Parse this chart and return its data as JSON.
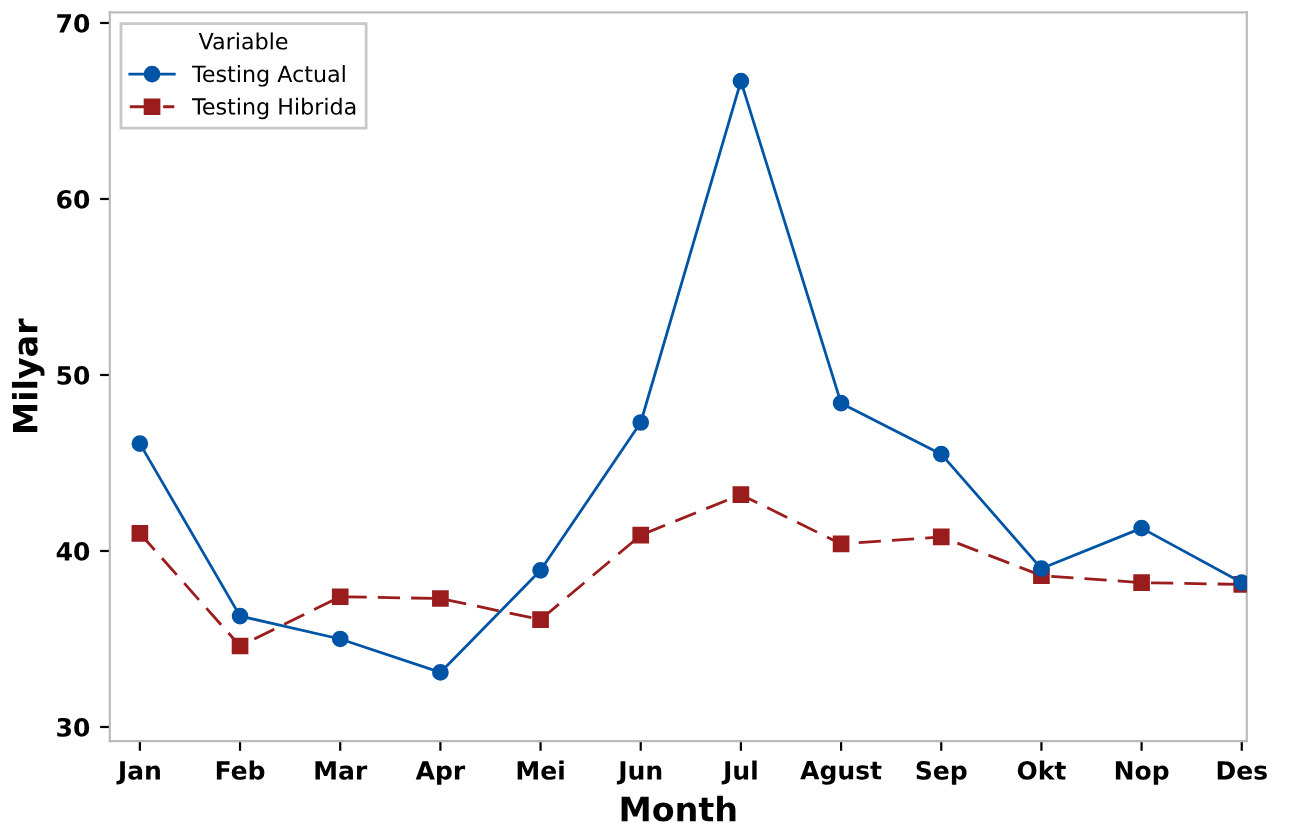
{
  "chart_data": {
    "type": "line",
    "xlabel": "Month",
    "ylabel": "Milyar",
    "legend_title": "Variable",
    "categories": [
      "Jan",
      "Feb",
      "Mar",
      "Apr",
      "Mei",
      "Jun",
      "Jul",
      "Agust",
      "Sep",
      "Okt",
      "Nop",
      "Des"
    ],
    "series": [
      {
        "name": "Testing Actual",
        "color": "#0054a6",
        "marker": "circle",
        "line_style": "solid",
        "values": [
          46.1,
          36.3,
          35.0,
          33.1,
          38.9,
          47.3,
          66.7,
          48.4,
          45.5,
          39.0,
          41.3,
          38.2
        ]
      },
      {
        "name": "Testing Hibrida",
        "color": "#9b1c1c",
        "marker": "square",
        "line_style": "dashed",
        "values": [
          41.0,
          34.6,
          37.4,
          37.3,
          36.1,
          40.9,
          43.2,
          40.4,
          40.8,
          38.6,
          38.2,
          38.1
        ]
      }
    ],
    "ylim": [
      29.2,
      70.6
    ],
    "yticks": [
      30,
      40,
      50,
      60,
      70
    ],
    "grid": false,
    "legend": "top left"
  }
}
